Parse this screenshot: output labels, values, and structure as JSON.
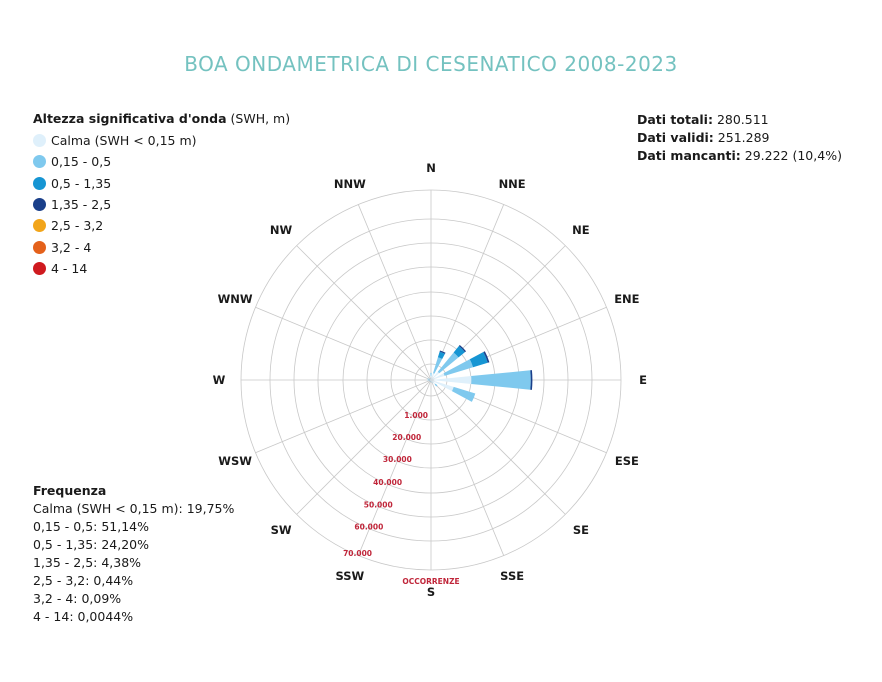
{
  "title": "BOA ONDAMETRICA DI CESENATICO 2008-2023",
  "legend": {
    "title_bold": "Altezza significativa d'onda",
    "title_unit": " (SWH, m)",
    "items": [
      {
        "label": "Calma (SWH < 0,15 m)",
        "color": "#dff0fb"
      },
      {
        "label": "0,15 - 0,5",
        "color": "#7fc9ee"
      },
      {
        "label": "0,5 - 1,35",
        "color": "#1695d3"
      },
      {
        "label": "1,35 - 2,5",
        "color": "#1a3f8a"
      },
      {
        "label": "2,5 - 3,2",
        "color": "#f2a51a"
      },
      {
        "label": "3,2 - 4",
        "color": "#e4611b"
      },
      {
        "label": "4 - 14",
        "color": "#cf1a1f"
      }
    ]
  },
  "stats": {
    "total_label": "Dati totali:",
    "total_value": " 280.511",
    "valid_label": "Dati validi:",
    "valid_value": " 251.289",
    "missing_label": "Dati mancanti:",
    "missing_value": " 29.222  (10,4%)"
  },
  "frequency": {
    "title": "Frequenza",
    "lines": [
      "Calma (SWH < 0,15 m): 19,75%",
      "0,15 - 0,5: 51,14%",
      "0,5 - 1,35: 24,20%",
      "1,35 - 2,5: 4,38%",
      "2,5 - 3,2: 0,44%",
      "3,2 - 4: 0,09%",
      "4 - 14: 0,0044%"
    ]
  },
  "chart_data": {
    "type": "wind-rose",
    "directions": [
      "N",
      "NNE",
      "NE",
      "ENE",
      "E",
      "ESE",
      "SE",
      "SSE",
      "S",
      "SSW",
      "SW",
      "WSW",
      "W",
      "WNW",
      "NW",
      "NNW"
    ],
    "radial_ticks": [
      1000,
      20000,
      30000,
      40000,
      50000,
      60000,
      70000
    ],
    "radial_tick_labels": [
      "1.000",
      "20.000",
      "30.000",
      "40.000",
      "50.000",
      "60.000",
      "70.000"
    ],
    "radial_label": "OCCORRENZE",
    "series": [
      {
        "name": "Calma (SWH < 0,15 m)",
        "color": "#dff0fb",
        "values": [
          1500,
          3000,
          4500,
          6000,
          17000,
          10000,
          2500,
          1000,
          500,
          500,
          500,
          500,
          500,
          500,
          500,
          500
        ]
      },
      {
        "name": "0,15 - 0,5",
        "color": "#7fc9ee",
        "values": [
          1500,
          7000,
          10500,
          12500,
          25000,
          9500,
          1000,
          300,
          300,
          300,
          300,
          300,
          1000,
          1000,
          300,
          300
        ]
      },
      {
        "name": "0,5 - 1,35",
        "color": "#1695d3",
        "values": [
          0,
          2500,
          3500,
          6500,
          0,
          0,
          0,
          0,
          0,
          0,
          0,
          0,
          0,
          0,
          0,
          0
        ]
      },
      {
        "name": "1,35 - 2,5",
        "color": "#1a3f8a",
        "values": [
          0,
          500,
          600,
          700,
          700,
          0,
          0,
          0,
          0,
          0,
          0,
          0,
          0,
          0,
          0,
          0
        ]
      },
      {
        "name": "2,5 - 3,2",
        "color": "#f2a51a",
        "values": [
          0,
          0,
          0,
          0,
          0,
          0,
          0,
          0,
          0,
          0,
          0,
          0,
          0,
          0,
          0,
          0
        ]
      },
      {
        "name": "3,2 - 4",
        "color": "#e4611b",
        "values": [
          0,
          0,
          0,
          0,
          0,
          0,
          0,
          0,
          0,
          0,
          0,
          0,
          0,
          0,
          0,
          0
        ]
      },
      {
        "name": "4 - 14",
        "color": "#cf1a1f",
        "values": [
          0,
          0,
          0,
          0,
          0,
          0,
          0,
          0,
          0,
          0,
          0,
          0,
          0,
          0,
          0,
          0
        ]
      }
    ]
  }
}
